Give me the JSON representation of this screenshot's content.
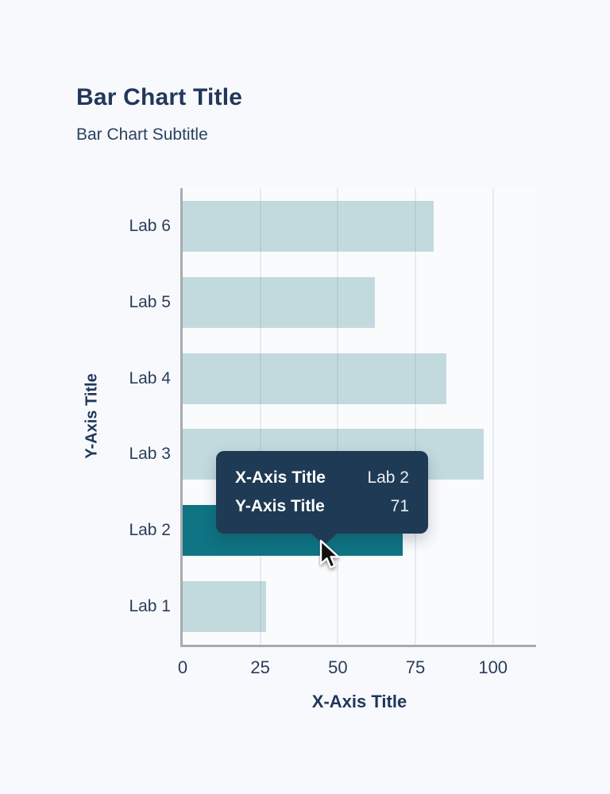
{
  "header": {
    "title": "Bar Chart Title",
    "subtitle": "Bar Chart Subtitle"
  },
  "chart_data": {
    "type": "bar",
    "orientation": "horizontal",
    "title": "Bar Chart Title",
    "subtitle": "Bar Chart Subtitle",
    "xlabel": "X-Axis Title",
    "ylabel": "Y-Axis Title",
    "categories": [
      "Lab 1",
      "Lab 2",
      "Lab 3",
      "Lab 4",
      "Lab 5",
      "Lab 6"
    ],
    "values": [
      27,
      71,
      97,
      85,
      62,
      81
    ],
    "display_order_top_to_bottom": [
      "Lab 6",
      "Lab 5",
      "Lab 4",
      "Lab 3",
      "Lab 2",
      "Lab 1"
    ],
    "xticks": [
      0,
      25,
      50,
      75,
      100
    ],
    "xlim": [
      0,
      113
    ],
    "grid": true,
    "bar_color": "#c2dade",
    "highlight_color": "#0f7483",
    "highlighted_category": "Lab 2",
    "background": "#f7f9fc",
    "axis_line_color": "#a7abb0",
    "text_color": "#22375a"
  },
  "tooltip": {
    "background": "#1f3a54",
    "rows": [
      {
        "label": "X-Axis Title",
        "value": "Lab 2"
      },
      {
        "label": "Y-Axis Title",
        "value": "71"
      }
    ]
  }
}
